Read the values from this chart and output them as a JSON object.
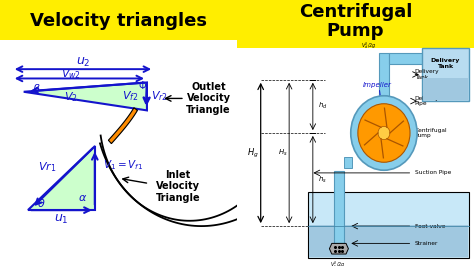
{
  "title_left": "Velocity triangles",
  "title_right": "Centrifugal\nPump",
  "bg_yellow": "#FFEE00",
  "bg_white": "#FFFFFF",
  "blue": "#1414CC",
  "light_blue": "#87CEEB",
  "light_blue2": "#B0D8E8",
  "green_fill": "#CCFFCC",
  "orange": "#FF8C00",
  "black": "#000000",
  "outlet_label": "Outlet\nVelocity\nTriangle",
  "inlet_label": "Inlet\nVelocity\nTriangle"
}
